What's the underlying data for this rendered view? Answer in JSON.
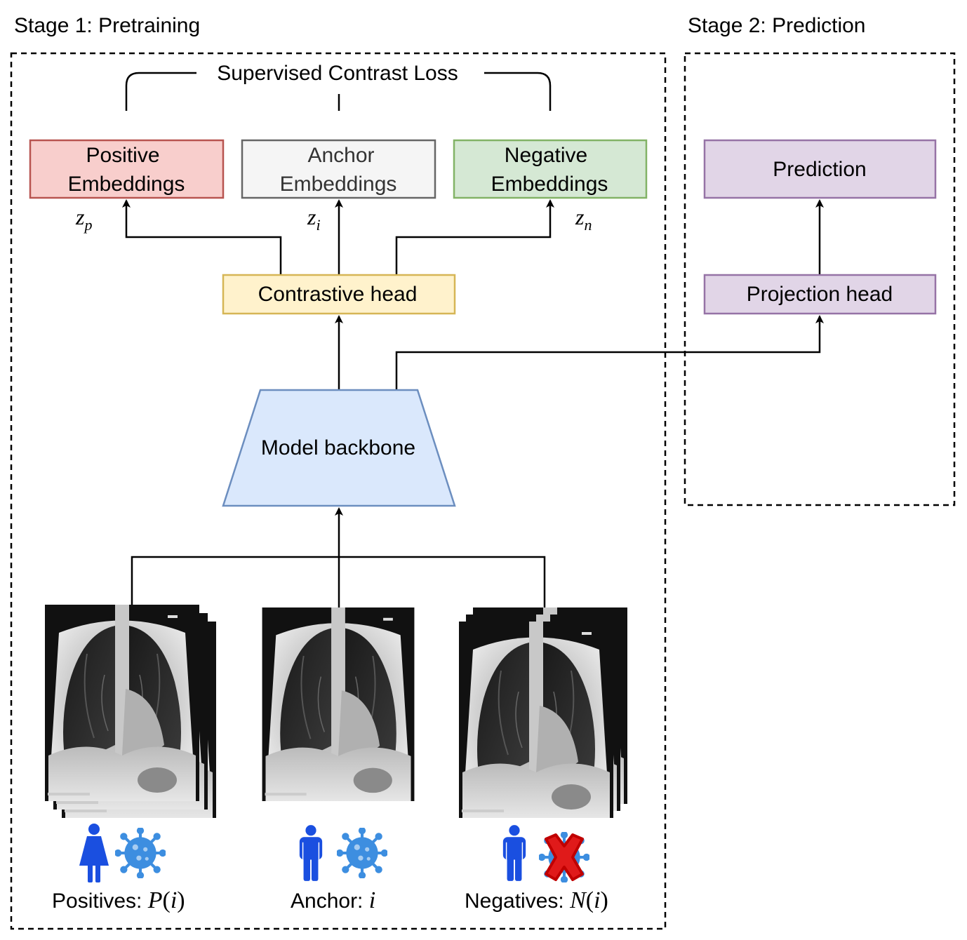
{
  "stage1": {
    "title": "Stage 1: Pretraining"
  },
  "stage2": {
    "title": "Stage 2: Prediction"
  },
  "loss": {
    "label": "Supervised Contrast Loss"
  },
  "embeddings": {
    "positive": {
      "line1": "Positive",
      "line2": "Embeddings",
      "symbol": "z",
      "subscript": "p",
      "fill": "#f8cecc",
      "stroke": "#b85450"
    },
    "anchor": {
      "line1": "Anchor",
      "line2": "Embeddings",
      "symbol": "z",
      "subscript": "i",
      "fill": "#f5f5f5",
      "stroke": "#666666"
    },
    "negative": {
      "line1": "Negative",
      "line2": "Embeddings",
      "symbol": "z",
      "subscript": "n",
      "fill": "#d5e8d4",
      "stroke": "#82b366"
    }
  },
  "contrastive_head": {
    "label": "Contrastive head",
    "fill": "#fff2cc",
    "stroke": "#d6b656"
  },
  "backbone": {
    "label": "Model backbone",
    "fill": "#dae8fc",
    "stroke": "#6c8ebf"
  },
  "prediction": {
    "label": "Prediction",
    "fill": "#e1d5e7",
    "stroke": "#9673a6"
  },
  "projection_head": {
    "label": "Projection head",
    "fill": "#e1d5e7",
    "stroke": "#9673a6"
  },
  "inputs": {
    "positives": {
      "label": "Positives: ",
      "math": "P",
      "arg": "i",
      "person": "female-icon",
      "virus": "virus-icon"
    },
    "anchor": {
      "label": "Anchor: ",
      "math": "i",
      "person": "male-icon",
      "virus": "virus-icon"
    },
    "negatives": {
      "label": "Negatives: ",
      "math": "N",
      "arg": "i",
      "person": "male-icon",
      "virus": "virus-crossed-icon"
    }
  },
  "colors": {
    "person": "#1a4fe0",
    "virus": "#3d8ee0",
    "cross": "#e01a1a"
  }
}
